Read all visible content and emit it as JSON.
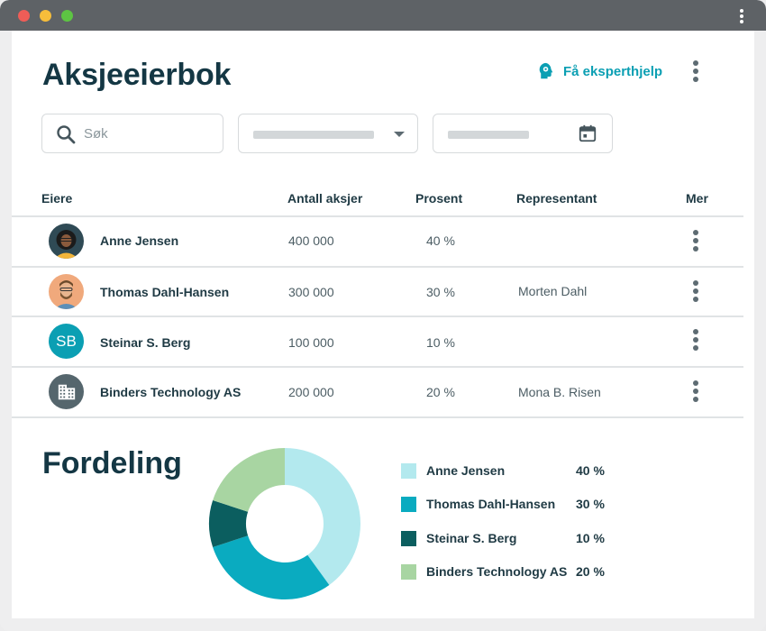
{
  "header": {
    "title": "Aksjeeierbok",
    "help_label": "Få eksperthjelp"
  },
  "filters": {
    "search_placeholder": "Søk"
  },
  "table": {
    "columns": [
      "Eiere",
      "Antall aksjer",
      "Prosent",
      "Representant",
      "Mer"
    ],
    "rows": [
      {
        "name": "Anne Jensen",
        "shares": "400 000",
        "percent": "40 %",
        "representative": "",
        "avatar": "photo-woman"
      },
      {
        "name": "Thomas Dahl-Hansen",
        "shares": "300 000",
        "percent": "30 %",
        "representative": "Morten Dahl",
        "avatar": "photo-man"
      },
      {
        "name": "Steinar S. Berg",
        "shares": "100 000",
        "percent": "10 %",
        "representative": "",
        "avatar": "initials",
        "initials": "SB"
      },
      {
        "name": "Binders Technology AS",
        "shares": "200 000",
        "percent": "20 %",
        "representative": "Mona B. Risen",
        "avatar": "building-icon"
      }
    ]
  },
  "distribution": {
    "title": "Fordeling",
    "legend": [
      {
        "label": "Anne Jensen",
        "value": "40 %"
      },
      {
        "label": "Thomas Dahl-Hansen",
        "value": "30 %"
      },
      {
        "label": "Steinar S. Berg",
        "value": "10 %"
      },
      {
        "label": "Binders Technology AS",
        "value": "20 %"
      }
    ]
  },
  "chart_data": {
    "type": "pie",
    "title": "Fordeling",
    "categories": [
      "Anne Jensen",
      "Thomas Dahl-Hansen",
      "Steinar S. Berg",
      "Binders Technology AS"
    ],
    "values": [
      40,
      30,
      10,
      20
    ],
    "colors": [
      "#b3e9ee",
      "#0aabc0",
      "#0b5e5f",
      "#a8d5a2"
    ],
    "donut": true,
    "legend": "right"
  },
  "theme": {
    "accent": "#0b9fb3",
    "title_color": "#143744"
  }
}
